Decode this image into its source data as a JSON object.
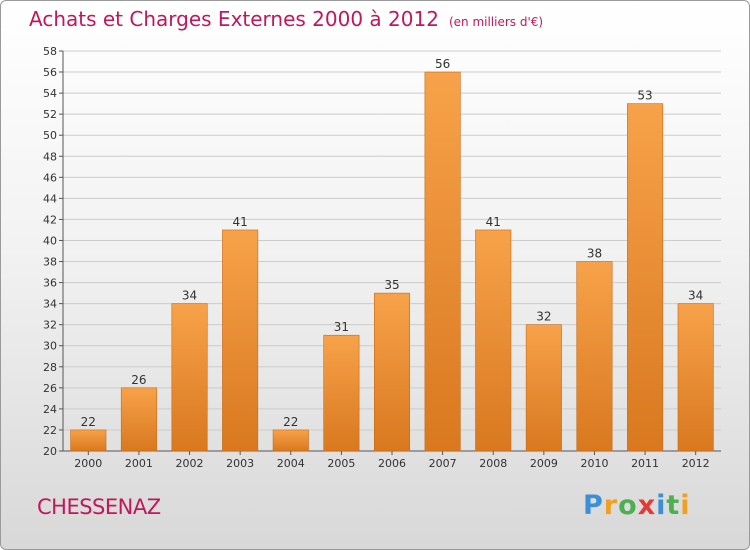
{
  "title": "Achats et Charges Externes 2000 à 2012",
  "unit": "(en milliers d'€)",
  "commune": "CHESSENAZ",
  "logo": {
    "letters": [
      "P",
      "r",
      "o",
      "x",
      "i",
      "t",
      "i"
    ],
    "colors": [
      "#3a8fd6",
      "#f0a020",
      "#4caf50",
      "#e53935",
      "#3a8fd6",
      "#4caf50",
      "#f0a020"
    ]
  },
  "colors": {
    "bar_top": "#f7a24a",
    "bar_bottom": "#d9781f",
    "text": "#c0185a",
    "grid": "#cccccc"
  },
  "chart_data": {
    "type": "bar",
    "title": "Achats et Charges Externes 2000 à 2012",
    "categories": [
      "2000",
      "2001",
      "2002",
      "2003",
      "2004",
      "2005",
      "2006",
      "2007",
      "2008",
      "2009",
      "2010",
      "2011",
      "2012"
    ],
    "values": [
      22,
      26,
      34,
      41,
      22,
      31,
      35,
      56,
      41,
      32,
      38,
      53,
      34
    ],
    "ylim": [
      20,
      58
    ],
    "yticks": [
      20,
      22,
      24,
      26,
      28,
      30,
      32,
      34,
      36,
      38,
      40,
      42,
      44,
      46,
      48,
      50,
      52,
      54,
      56,
      58
    ],
    "grid": true,
    "data_labels": true
  }
}
